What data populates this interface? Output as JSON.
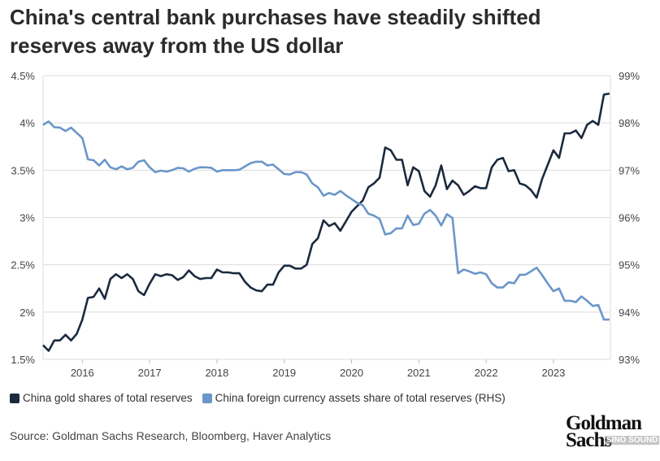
{
  "title_lines": [
    "China's central bank purchases have steadily shifted",
    "reserves away from the US dollar"
  ],
  "colors": {
    "gold": "#1b2a3e",
    "fx": "#6b96c9",
    "grid": "#dcdcdc",
    "axis_text": "#444444"
  },
  "chart_data": {
    "type": "line",
    "title": "China's central bank purchases have steadily shifted reserves away from the US dollar",
    "x_start": "2015-06",
    "x_frequency": "monthly",
    "x_ticks": [
      "2016",
      "2017",
      "2018",
      "2019",
      "2020",
      "2021",
      "2022",
      "2023"
    ],
    "y_left": {
      "range": [
        1.5,
        4.5
      ],
      "ticks": [
        "1.5%",
        "2%",
        "2.5%",
        "3%",
        "3.5%",
        "4%",
        "4.5%"
      ],
      "tick_values": [
        1.5,
        2,
        2.5,
        3,
        3.5,
        4,
        4.5
      ]
    },
    "y_right": {
      "range": [
        93,
        99
      ],
      "ticks": [
        "93%",
        "94%",
        "95%",
        "96%",
        "97%",
        "98%",
        "99%"
      ],
      "tick_values": [
        93,
        94,
        95,
        96,
        97,
        98,
        99
      ]
    },
    "grid": true,
    "legend_placement": "bottom",
    "series": [
      {
        "name": "China gold shares of total reserves",
        "axis": "left",
        "values": [
          1.65,
          1.59,
          1.7,
          1.7,
          1.76,
          1.7,
          1.77,
          1.92,
          2.15,
          2.16,
          2.25,
          2.14,
          2.35,
          2.4,
          2.36,
          2.4,
          2.35,
          2.22,
          2.18,
          2.3,
          2.4,
          2.38,
          2.4,
          2.39,
          2.34,
          2.37,
          2.44,
          2.38,
          2.35,
          2.36,
          2.36,
          2.45,
          2.42,
          2.42,
          2.41,
          2.41,
          2.32,
          2.26,
          2.23,
          2.22,
          2.29,
          2.29,
          2.42,
          2.49,
          2.49,
          2.46,
          2.46,
          2.5,
          2.72,
          2.78,
          2.97,
          2.91,
          2.94,
          2.86,
          2.96,
          3.06,
          3.12,
          3.18,
          3.32,
          3.36,
          3.42,
          3.74,
          3.71,
          3.61,
          3.61,
          3.34,
          3.53,
          3.49,
          3.28,
          3.22,
          3.34,
          3.55,
          3.3,
          3.39,
          3.34,
          3.24,
          3.28,
          3.33,
          3.31,
          3.31,
          3.53,
          3.61,
          3.63,
          3.49,
          3.5,
          3.36,
          3.34,
          3.29,
          3.21,
          3.41,
          3.56,
          3.71,
          3.63,
          3.89,
          3.89,
          3.92,
          3.84,
          3.98,
          4.02,
          3.98,
          4.3,
          4.31
        ]
      },
      {
        "name": "China foreign currency assets share of total reserves (RHS)",
        "axis": "right",
        "values": [
          97.96,
          98.03,
          97.91,
          97.9,
          97.83,
          97.9,
          97.79,
          97.68,
          97.23,
          97.21,
          97.1,
          97.22,
          97.06,
          97.02,
          97.08,
          97.02,
          97.05,
          97.18,
          97.21,
          97.06,
          96.96,
          96.99,
          96.97,
          97.0,
          97.05,
          97.04,
          96.97,
          97.03,
          97.06,
          97.06,
          97.05,
          96.97,
          97.0,
          97.0,
          97.0,
          97.01,
          97.08,
          97.15,
          97.18,
          97.18,
          97.1,
          97.12,
          97.02,
          96.92,
          96.91,
          96.96,
          96.96,
          96.91,
          96.72,
          96.64,
          96.46,
          96.52,
          96.48,
          96.56,
          96.47,
          96.39,
          96.31,
          96.26,
          96.08,
          96.04,
          95.97,
          95.64,
          95.67,
          95.77,
          95.77,
          96.04,
          95.84,
          95.87,
          96.08,
          96.16,
          96.04,
          95.83,
          96.07,
          95.99,
          94.82,
          94.9,
          94.86,
          94.81,
          94.84,
          94.8,
          94.61,
          94.52,
          94.52,
          94.63,
          94.61,
          94.79,
          94.79,
          94.86,
          94.94,
          94.78,
          94.6,
          94.44,
          94.5,
          94.24,
          94.24,
          94.21,
          94.33,
          94.24,
          94.13,
          94.15,
          93.84,
          93.84
        ]
      }
    ]
  },
  "legend": [
    "China gold shares of total reserves",
    "China foreign currency assets share of total reserves (RHS)"
  ],
  "source": "Source: Goldman Sachs Research, Bloomberg, Haver Analytics",
  "logo": {
    "line1": "Goldman",
    "line2": "Sachs"
  },
  "watermark": "SINO SOUND"
}
